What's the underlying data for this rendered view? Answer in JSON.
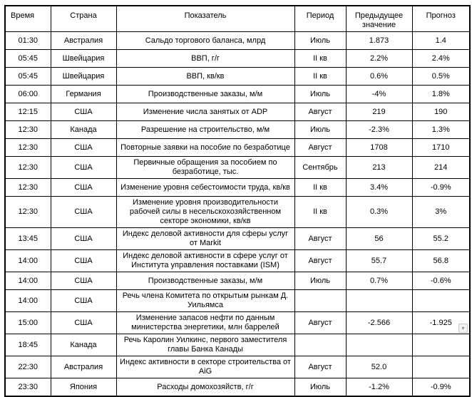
{
  "colors": {
    "border": "#000000",
    "text": "#000000",
    "background": "#ffffff",
    "widget_background": "#f4f4f4",
    "widget_border": "#c6c6c6"
  },
  "widget": {
    "scroll_arrow": "▾"
  },
  "table": {
    "headers": [
      "Время",
      "Страна",
      "Показатель",
      "Период",
      "Предыдущее значение",
      "Прогноз"
    ],
    "rows": [
      [
        "01:30",
        "Австралия",
        "Сальдо торгового баланса, млрд",
        "Июль",
        "1.873",
        "1.4"
      ],
      [
        "05:45",
        "Швейцария",
        "ВВП, г/г",
        "II кв",
        "2.2%",
        "2.4%"
      ],
      [
        "05:45",
        "Швейцария",
        "ВВП, кв/кв",
        "II кв",
        "0.6%",
        "0.5%"
      ],
      [
        "06:00",
        "Германия",
        "Производственные заказы, м/м",
        "Июль",
        "-4%",
        "1.8%"
      ],
      [
        "12:15",
        "США",
        "Изменение числа занятых от ADP",
        "Август",
        "219",
        "190"
      ],
      [
        "12:30",
        "Канада",
        "Разрешение на строительство, м/м",
        "Июль",
        "-2.3%",
        "1.3%"
      ],
      [
        "12:30",
        "США",
        "Повторные заявки на пособие по безработице",
        "Август",
        "1708",
        "1710"
      ],
      [
        "12:30",
        "США",
        "Первичные обращения за пособием по безработице, тыс.",
        "Сентябрь",
        "213",
        "214"
      ],
      [
        "12:30",
        "США",
        "Изменение уровня себестоимости труда, кв/кв",
        "II кв",
        "3.4%",
        "-0.9%"
      ],
      [
        "12:30",
        "США",
        "Изменение уровня производительности рабочей силы в несельскохозяйственном секторе экономики, кв/кв",
        "II кв",
        "0.3%",
        "3%"
      ],
      [
        "13:45",
        "США",
        "Индекс деловой активности для сферы услуг от Markit",
        "Август",
        "56",
        "55.2"
      ],
      [
        "14:00",
        "США",
        "Индекс деловой активности в сфере услуг от Института управления поставками (ISM)",
        "Август",
        "55.7",
        "56.8"
      ],
      [
        "14:00",
        "США",
        "Производственные заказы, м/м",
        "Июль",
        "0.7%",
        "-0.6%"
      ],
      [
        "14:00",
        "США",
        "Речь члена Комитета по открытым рынкам Д. Уильямса",
        "",
        "",
        ""
      ],
      [
        "15:00",
        "США",
        "Изменение запасов нефти по данным министерства энергетики, млн баррелей",
        "Август",
        "-2.566",
        "-1.925"
      ],
      [
        "18:45",
        "Канада",
        "Речь Каролин Уилкинс, первого заместителя главы Банка Канады",
        "",
        "",
        ""
      ],
      [
        "22:30",
        "Австралия",
        "Индекс активности в секторе строительства от AiG",
        "Август",
        "52.0",
        ""
      ],
      [
        "23:30",
        "Япония",
        "Расходы домохозяйств, г/г",
        "Июль",
        "-1.2%",
        "-0.9%"
      ]
    ]
  }
}
